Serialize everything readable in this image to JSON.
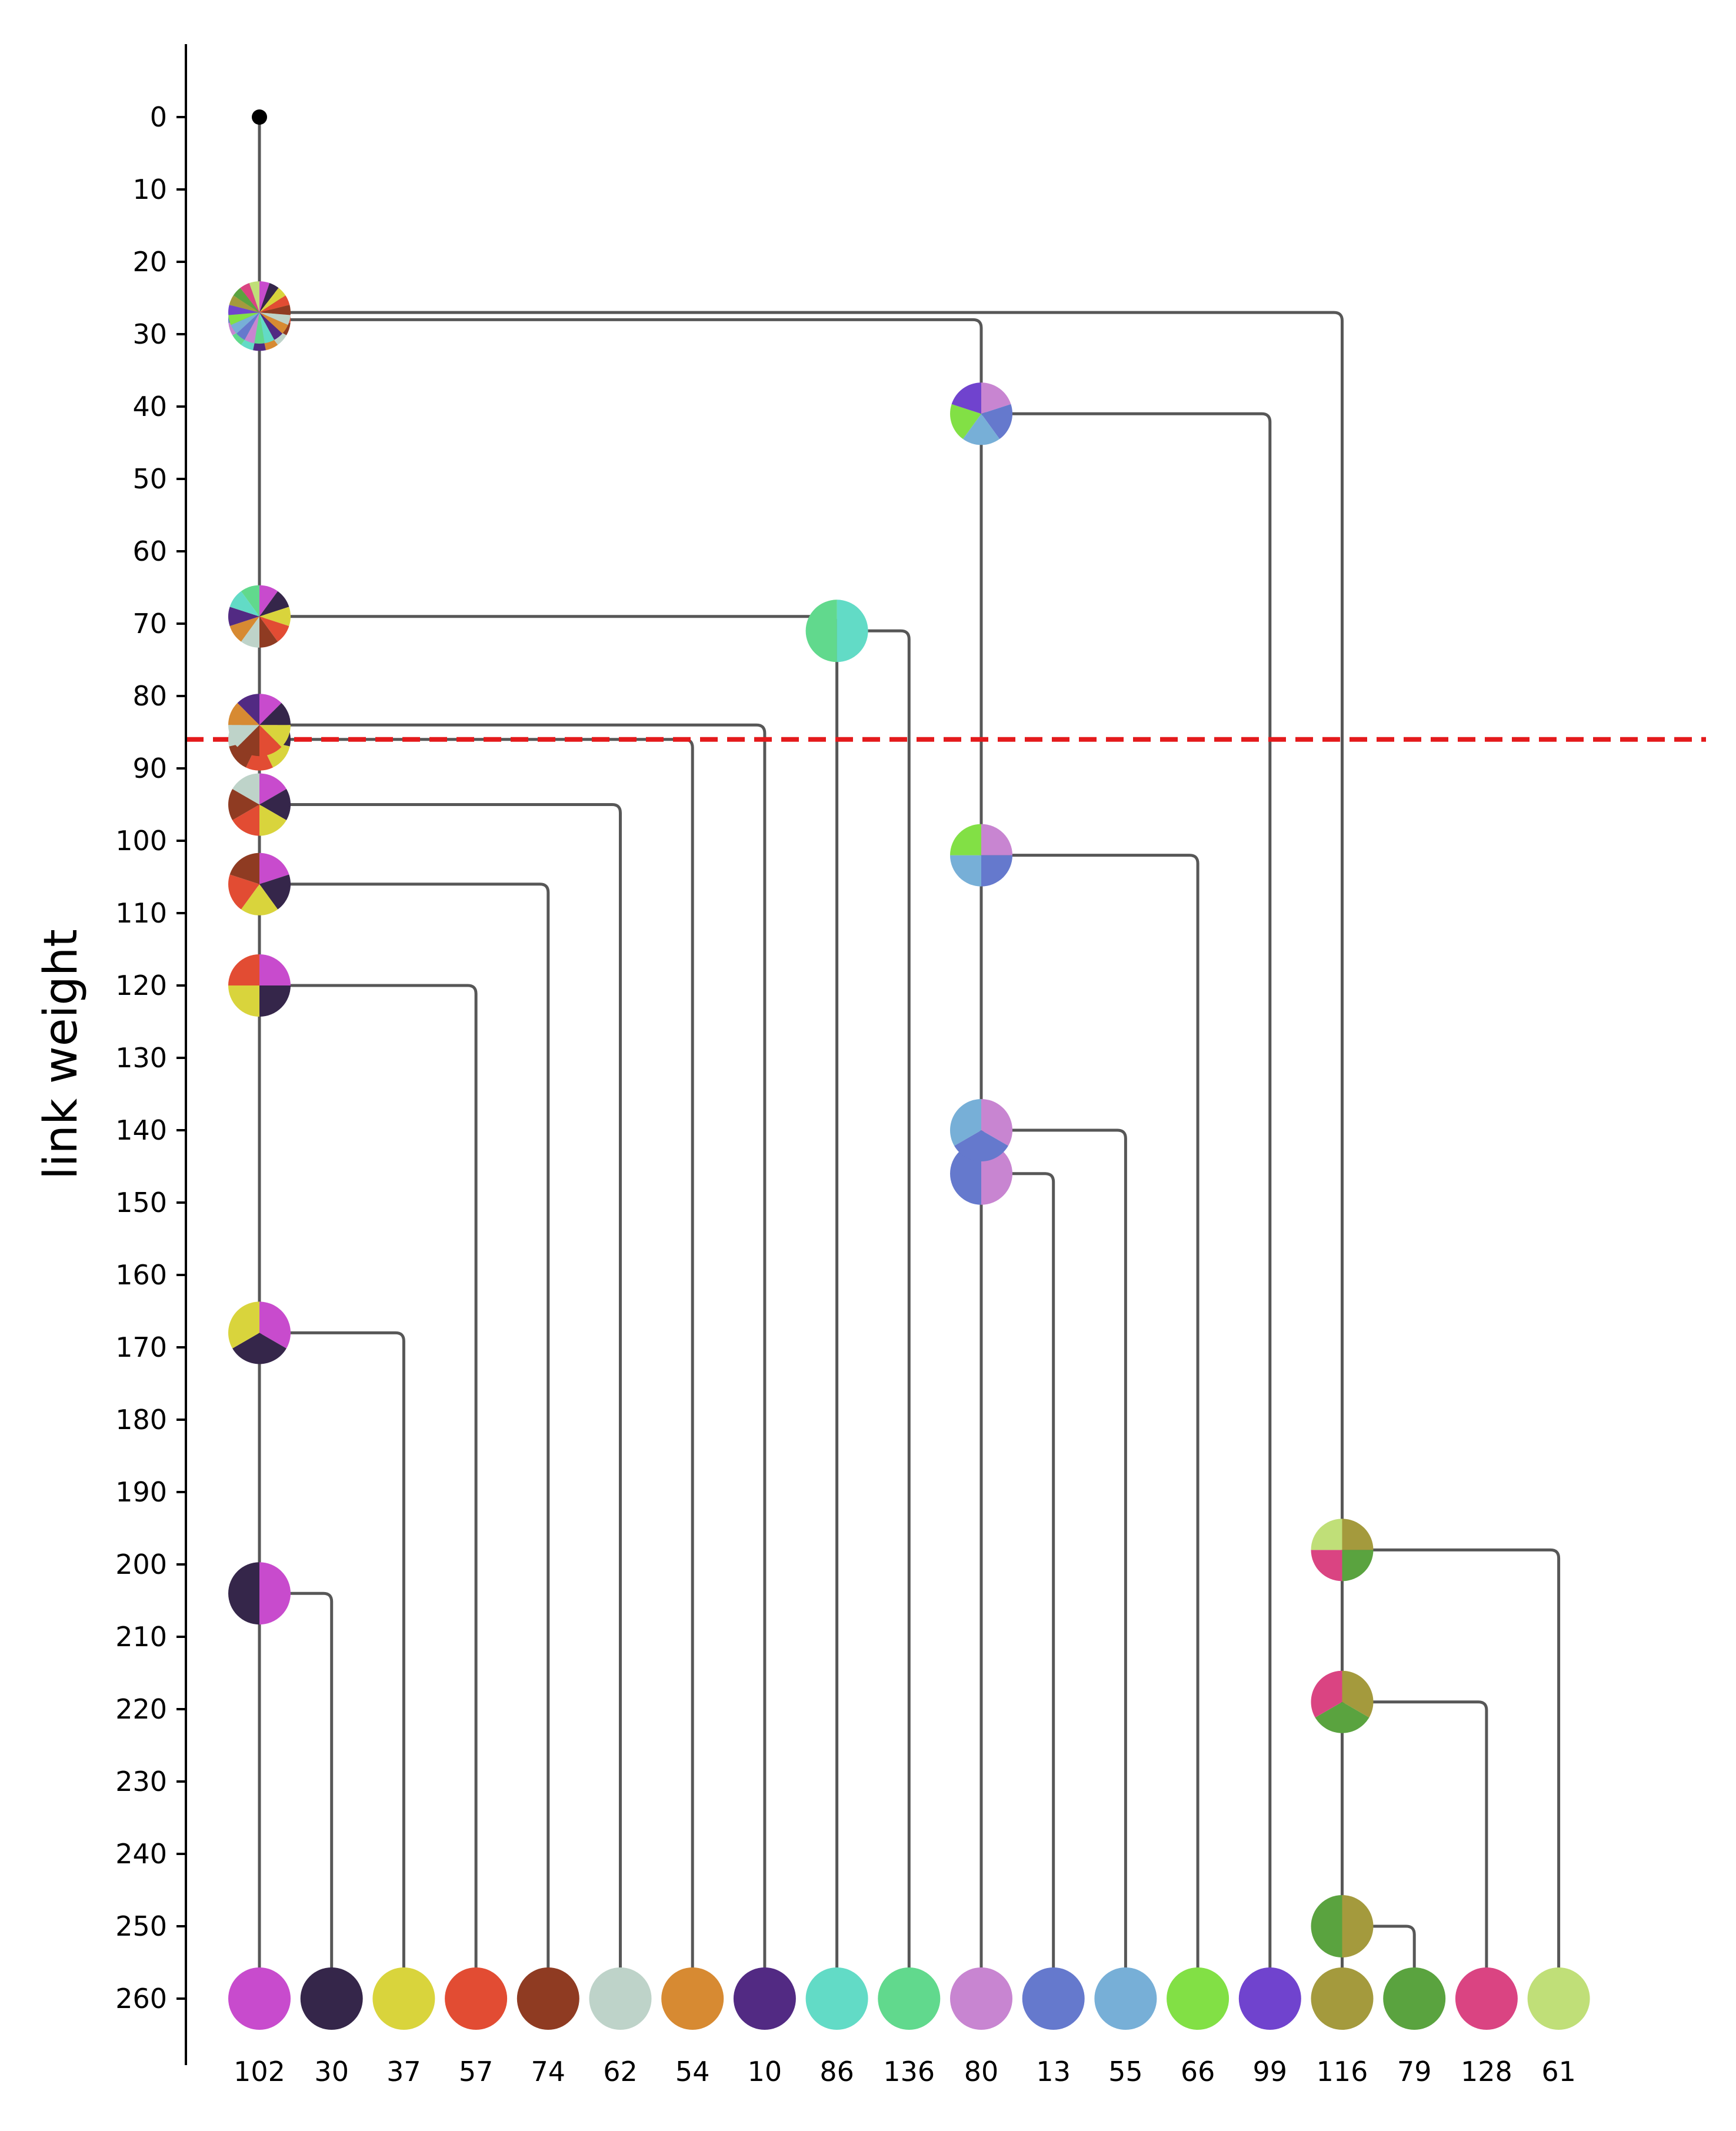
{
  "chart_data": {
    "type": "dendrogram",
    "ylabel": "link weight",
    "ylim": [
      -10,
      270
    ],
    "y_ticks": [
      0,
      10,
      20,
      30,
      40,
      50,
      60,
      70,
      80,
      90,
      100,
      110,
      120,
      130,
      140,
      150,
      160,
      170,
      180,
      190,
      200,
      210,
      220,
      230,
      240,
      250,
      260
    ],
    "y_inverted": true,
    "cut_line": {
      "value": 86,
      "color": "#e41a1c",
      "style": "dashed"
    },
    "root": {
      "weight": 0,
      "color": "#000000"
    },
    "leaves": [
      {
        "label": "102",
        "color": "#c84bcd"
      },
      {
        "label": "30",
        "color": "#35264a"
      },
      {
        "label": "37",
        "color": "#d9d43c"
      },
      {
        "label": "57",
        "color": "#e24c33"
      },
      {
        "label": "74",
        "color": "#8f3b22"
      },
      {
        "label": "62",
        "color": "#bed3c9"
      },
      {
        "label": "54",
        "color": "#d78a32"
      },
      {
        "label": "10",
        "color": "#522a83"
      },
      {
        "label": "86",
        "color": "#62dbc6"
      },
      {
        "label": "136",
        "color": "#61d98d"
      },
      {
        "label": "80",
        "color": "#c885d1"
      },
      {
        "label": "13",
        "color": "#6579cd"
      },
      {
        "label": "55",
        "color": "#77afd7"
      },
      {
        "label": "66",
        "color": "#82e045"
      },
      {
        "label": "99",
        "color": "#7043ce"
      },
      {
        "label": "116",
        "color": "#a49a3d"
      },
      {
        "label": "79",
        "color": "#5aa33f"
      },
      {
        "label": "128",
        "color": "#da4482"
      },
      {
        "label": "61",
        "color": "#c0df78"
      }
    ],
    "merges": [
      {
        "id": "m1",
        "weight": 204,
        "node": "102",
        "join": "30"
      },
      {
        "id": "m2",
        "weight": 168,
        "node": "102",
        "join": "37"
      },
      {
        "id": "m3",
        "weight": 120,
        "node": "102",
        "join": "57"
      },
      {
        "id": "m4",
        "weight": 106,
        "node": "102",
        "join": "74"
      },
      {
        "id": "m5",
        "weight": 95,
        "node": "102",
        "join": "62"
      },
      {
        "id": "m6",
        "weight": 86,
        "node": "102",
        "join": "54"
      },
      {
        "id": "m7",
        "weight": 84,
        "node": "102",
        "join": "10"
      },
      {
        "id": "m8",
        "weight": 71,
        "node": "86",
        "join": "136"
      },
      {
        "id": "m9",
        "weight": 69,
        "node": "102",
        "join": "86"
      },
      {
        "id": "m10",
        "weight": 146,
        "node": "80",
        "join": "13"
      },
      {
        "id": "m11",
        "weight": 140,
        "node": "80",
        "join": "55"
      },
      {
        "id": "m12",
        "weight": 102,
        "node": "80",
        "join": "66"
      },
      {
        "id": "m13",
        "weight": 41,
        "node": "80",
        "join": "99"
      },
      {
        "id": "m14",
        "weight": 28,
        "node": "102",
        "join": "80"
      },
      {
        "id": "m15",
        "weight": 250,
        "node": "116",
        "join": "79"
      },
      {
        "id": "m16",
        "weight": 219,
        "node": "116",
        "join": "128"
      },
      {
        "id": "m17",
        "weight": 198,
        "node": "116",
        "join": "61"
      },
      {
        "id": "m18",
        "weight": 27,
        "node": "102",
        "join": "116"
      }
    ]
  }
}
